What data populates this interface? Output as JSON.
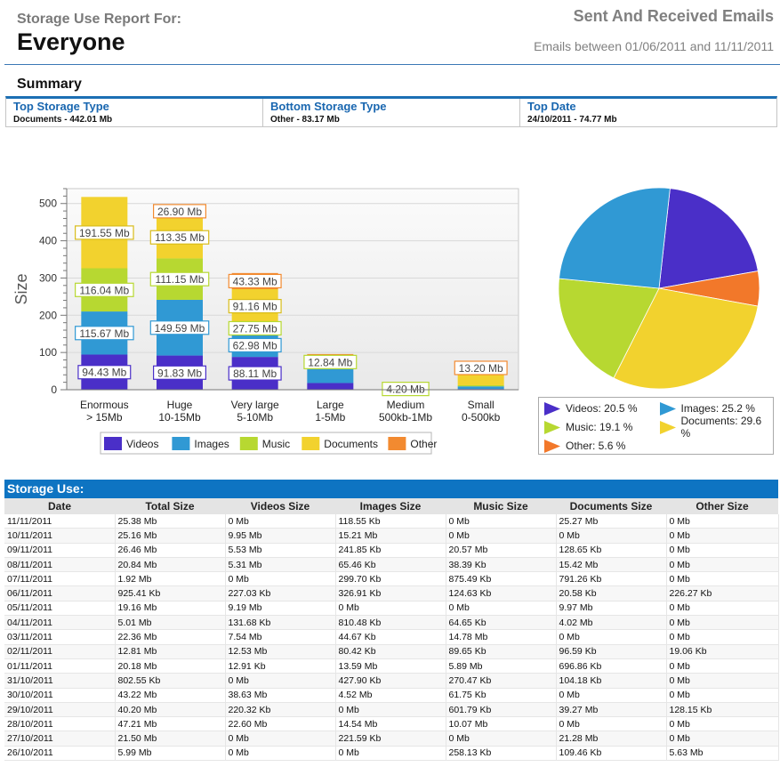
{
  "header": {
    "report_label": "Storage Use Report For:",
    "report_subject": "Everyone",
    "title": "Sent And Received Emails",
    "date_range": "Emails between 01/06/2011 and 11/11/2011"
  },
  "summary": {
    "title": "Summary",
    "items": [
      {
        "label": "Top Storage Type",
        "value": "Documents - 442.01 Mb"
      },
      {
        "label": "Bottom Storage Type",
        "value": "Other - 83.17 Mb"
      },
      {
        "label": "Top Date",
        "value": "24/10/2011 - 74.77 Mb"
      }
    ]
  },
  "chart_data": [
    {
      "type": "bar",
      "stacked": true,
      "ylabel": "Size",
      "ylim": [
        0,
        540
      ],
      "yticks": [
        0,
        100,
        200,
        300,
        400,
        500
      ],
      "grid": true,
      "legend_position": "bottom",
      "categories": [
        [
          "Enormous",
          "> 15Mb"
        ],
        [
          "Huge",
          "10-15Mb"
        ],
        [
          "Very large",
          "5-10Mb"
        ],
        [
          "Large",
          "1-5Mb"
        ],
        [
          "Medium",
          "500kb-1Mb"
        ],
        [
          "Small",
          "0-500kb"
        ]
      ],
      "series": [
        {
          "name": "Videos",
          "color": "#4a2fc8",
          "values": [
            94.43,
            91.83,
            88.11,
            18.0,
            0.0,
            2.0
          ],
          "labels": [
            "94.43 Mb",
            "91.83 Mb",
            "88.11 Mb",
            "",
            "",
            ""
          ]
        },
        {
          "name": "Images",
          "color": "#3099d4",
          "values": [
            115.67,
            149.59,
            62.98,
            50.0,
            0.0,
            7.0
          ],
          "labels": [
            "115.67 Mb",
            "149.59 Mb",
            "62.98 Mb",
            "",
            "",
            ""
          ]
        },
        {
          "name": "Music",
          "color": "#b7d831",
          "values": [
            116.04,
            111.15,
            27.75,
            12.84,
            4.2,
            3.0
          ],
          "labels": [
            "116.04 Mb",
            "111.15 Mb",
            "27.75 Mb",
            "12.84 Mb",
            "4.20 Mb",
            ""
          ]
        },
        {
          "name": "Documents",
          "color": "#f2d22e",
          "values": [
            191.55,
            113.35,
            91.16,
            12.0,
            0.0,
            40.0
          ],
          "labels": [
            "191.55 Mb",
            "113.35 Mb",
            "91.16 Mb",
            "",
            "",
            ""
          ]
        },
        {
          "name": "Other",
          "color": "#f28a30",
          "values": [
            0.0,
            26.9,
            43.33,
            3.0,
            0.0,
            13.2
          ],
          "labels": [
            "",
            "26.90 Mb",
            "43.33 Mb",
            "",
            "",
            "13.20 Mb"
          ]
        }
      ]
    },
    {
      "type": "pie",
      "slices": [
        {
          "name": "Videos",
          "value": 20.5,
          "label": "Videos: 20.5 %",
          "color": "#4a2fc8"
        },
        {
          "name": "Other",
          "value": 5.6,
          "label": "Other: 5.6 %",
          "color": "#f2782a"
        },
        {
          "name": "Documents",
          "value": 29.6,
          "label": "Documents: 29.6 %",
          "color": "#f2d22e"
        },
        {
          "name": "Music",
          "value": 19.1,
          "label": "Music: 19.1 %",
          "color": "#b7d831"
        },
        {
          "name": "Images",
          "value": 25.2,
          "label": "Images: 25.2 %",
          "color": "#3099d4"
        }
      ],
      "legend": [
        {
          "label": "Videos: 20.5 %",
          "color": "#4a2fc8"
        },
        {
          "label": "Images: 25.2 %",
          "color": "#3099d4"
        },
        {
          "label": "Music: 19.1 %",
          "color": "#b7d831"
        },
        {
          "label": "Documents: 29.6 %",
          "color": "#f2d22e"
        },
        {
          "label": "Other: 5.6 %",
          "color": "#f2782a"
        }
      ]
    }
  ],
  "table": {
    "title": "Storage Use:",
    "columns": [
      "Date",
      "Total Size",
      "Videos Size",
      "Images Size",
      "Music Size",
      "Documents Size",
      "Other Size"
    ],
    "rows": [
      [
        "11/11/2011",
        "25.38 Mb",
        "0 Mb",
        "118.55 Kb",
        "0 Mb",
        "25.27 Mb",
        "0 Mb"
      ],
      [
        "10/11/2011",
        "25.16 Mb",
        "9.95 Mb",
        "15.21 Mb",
        "0 Mb",
        "0 Mb",
        "0 Mb"
      ],
      [
        "09/11/2011",
        "26.46 Mb",
        "5.53 Mb",
        "241.85 Kb",
        "20.57 Mb",
        "128.65 Kb",
        "0 Mb"
      ],
      [
        "08/11/2011",
        "20.84 Mb",
        "5.31 Mb",
        "65.46 Kb",
        "38.39 Kb",
        "15.42 Mb",
        "0 Mb"
      ],
      [
        "07/11/2011",
        "1.92 Mb",
        "0 Mb",
        "299.70 Kb",
        "875.49 Kb",
        "791.26 Kb",
        "0 Mb"
      ],
      [
        "06/11/2011",
        "925.41 Kb",
        "227.03 Kb",
        "326.91 Kb",
        "124.63 Kb",
        "20.58 Kb",
        "226.27 Kb"
      ],
      [
        "05/11/2011",
        "19.16 Mb",
        "9.19 Mb",
        "0 Mb",
        "0 Mb",
        "9.97 Mb",
        "0 Mb"
      ],
      [
        "04/11/2011",
        "5.01 Mb",
        "131.68 Kb",
        "810.48 Kb",
        "64.65 Kb",
        "4.02 Mb",
        "0 Mb"
      ],
      [
        "03/11/2011",
        "22.36 Mb",
        "7.54 Mb",
        "44.67 Kb",
        "14.78 Mb",
        "0 Mb",
        "0 Mb"
      ],
      [
        "02/11/2011",
        "12.81 Mb",
        "12.53 Mb",
        "80.42 Kb",
        "89.65 Kb",
        "96.59 Kb",
        "19.06 Kb"
      ],
      [
        "01/11/2011",
        "20.18 Mb",
        "12.91 Kb",
        "13.59 Mb",
        "5.89 Mb",
        "696.86 Kb",
        "0 Mb"
      ],
      [
        "31/10/2011",
        "802.55 Kb",
        "0 Mb",
        "427.90 Kb",
        "270.47 Kb",
        "104.18 Kb",
        "0 Mb"
      ],
      [
        "30/10/2011",
        "43.22 Mb",
        "38.63 Mb",
        "4.52 Mb",
        "61.75 Kb",
        "0 Mb",
        "0 Mb"
      ],
      [
        "29/10/2011",
        "40.20 Mb",
        "220.32 Kb",
        "0 Mb",
        "601.79 Kb",
        "39.27 Mb",
        "128.15 Kb"
      ],
      [
        "28/10/2011",
        "47.21 Mb",
        "22.60 Mb",
        "14.54 Mb",
        "10.07 Mb",
        "0 Mb",
        "0 Mb"
      ],
      [
        "27/10/2011",
        "21.50 Mb",
        "0 Mb",
        "221.59 Kb",
        "0 Mb",
        "21.28 Mb",
        "0 Mb"
      ],
      [
        "26/10/2011",
        "5.99 Mb",
        "0 Mb",
        "0 Mb",
        "258.13 Kb",
        "109.46 Kb",
        "5.63 Mb"
      ]
    ]
  }
}
